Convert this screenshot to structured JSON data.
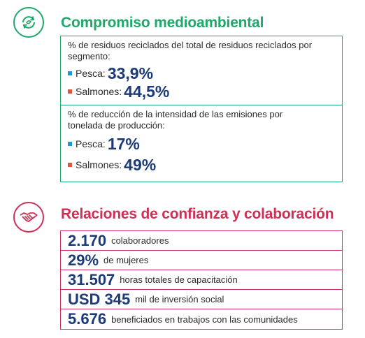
{
  "environment": {
    "title": "Compromiso medioambiental",
    "color": "#1fa86a",
    "icon": "recycle-icon",
    "blocks": [
      {
        "label": "% de residuos reciclados del total de residuos reciclados por segmento:",
        "rows": [
          {
            "label": "Pesca:",
            "value": "33,9%"
          },
          {
            "label": "Salmones:",
            "value": "44,5%"
          }
        ]
      },
      {
        "label": "% de reducción de la intensidad de las emisiones por tonelada de producción:",
        "rows": [
          {
            "label": "Pesca:",
            "value": "17%"
          },
          {
            "label": "Salmones:",
            "value": "49%"
          }
        ]
      }
    ]
  },
  "relations": {
    "title": "Relaciones de confianza y colaboración",
    "color": "#cf2f54",
    "icon": "handshake-icon",
    "stats": [
      {
        "value": "2.170",
        "label": "colaboradores"
      },
      {
        "value": "29%",
        "label": "de mujeres"
      },
      {
        "value": "31.507",
        "label": "horas totales de capacitación"
      },
      {
        "value": "USD 345",
        "label": "mil de inversión social"
      },
      {
        "value": "5.676",
        "label": "beneficiados en trabajos con las comunidades"
      }
    ]
  },
  "colors": {
    "pesca": "#1a9ad6",
    "salmones": "#e5533a",
    "value": "#1b3a7a"
  }
}
